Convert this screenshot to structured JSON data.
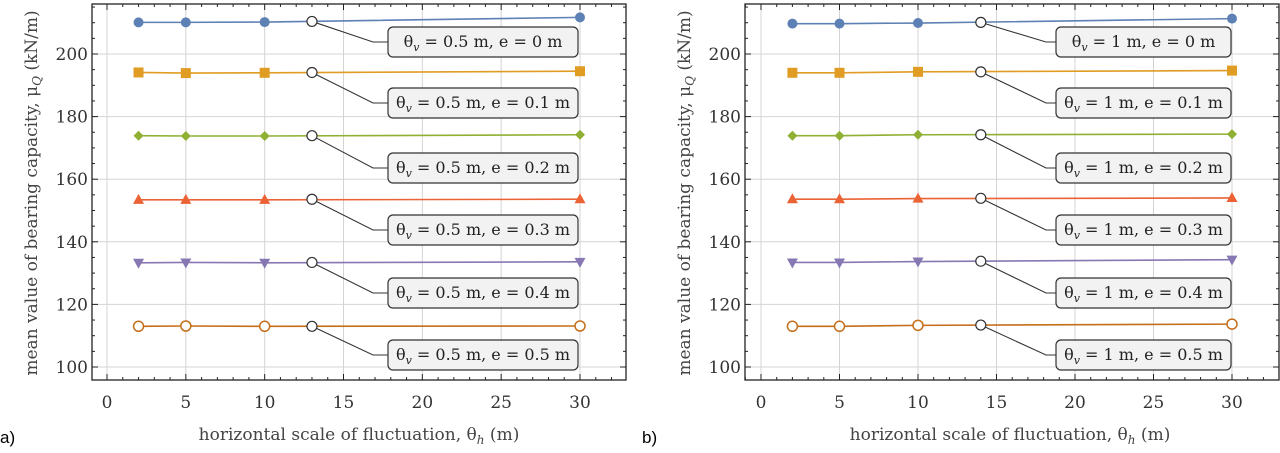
{
  "chart_data": [
    {
      "type": "line",
      "panel_label": "a)",
      "xlabel": {
        "pre": "horizontal scale of fluctuation, θ",
        "sub": "h",
        "post": " (m)"
      },
      "ylabel": {
        "pre": "mean value of bearing capacity, μ",
        "sub": "Q",
        "post": " (kN/m)"
      },
      "xlim": [
        -2,
        33.5
      ],
      "ylim": [
        96,
        216
      ],
      "xticks": [
        0,
        5,
        10,
        15,
        20,
        25,
        30
      ],
      "yticks": [
        100,
        120,
        140,
        160,
        180,
        200
      ],
      "grid": true,
      "x": [
        2,
        5,
        10,
        30
      ],
      "label_anchor_x": 13,
      "series": [
        {
          "label": {
            "pre": "θ",
            "sub": "v",
            "post": " = 0.5 m, e = 0 m"
          },
          "marker": "circle",
          "color": "#5e81b5",
          "values": [
            210.1,
            210.1,
            210.2,
            211.7
          ],
          "anchor_value": 210.4
        },
        {
          "label": {
            "pre": "θ",
            "sub": "v",
            "post": " = 0.5 m, e = 0.1 m"
          },
          "marker": "square",
          "color": "#e19c24",
          "values": [
            194.1,
            193.9,
            194.0,
            194.5
          ],
          "anchor_value": 194.1
        },
        {
          "label": {
            "pre": "θ",
            "sub": "v",
            "post": " = 0.5 m, e = 0.2 m"
          },
          "marker": "diamond",
          "color": "#8fb032",
          "values": [
            173.9,
            173.8,
            173.8,
            174.2
          ],
          "anchor_value": 173.9
        },
        {
          "label": {
            "pre": "θ",
            "sub": "v",
            "post": " = 0.5 m, e = 0.3 m"
          },
          "marker": "triangle-up",
          "color": "#eb6235",
          "values": [
            153.4,
            153.4,
            153.4,
            153.6
          ],
          "anchor_value": 153.6
        },
        {
          "label": {
            "pre": "θ",
            "sub": "v",
            "post": " = 0.5 m, e = 0.4 m"
          },
          "marker": "triangle-down",
          "color": "#8778b3",
          "values": [
            133.3,
            133.4,
            133.3,
            133.6
          ],
          "anchor_value": 133.4
        },
        {
          "label": {
            "pre": "θ",
            "sub": "v",
            "post": " = 0.5 m, e = 0.5 m"
          },
          "marker": "open-circle",
          "color": "#c56e1a",
          "values": [
            113.0,
            113.1,
            113.0,
            113.1
          ],
          "anchor_value": 113.0
        }
      ]
    },
    {
      "type": "line",
      "panel_label": "b)",
      "xlabel": {
        "pre": "horizontal scale of fluctuation, θ",
        "sub": "h",
        "post": " (m)"
      },
      "ylabel": {
        "pre": "mean value of bearing capacity, μ",
        "sub": "Q",
        "post": " (kN/m)"
      },
      "xlim": [
        -2,
        32
      ],
      "ylim": [
        96,
        216
      ],
      "xticks": [
        0,
        5,
        10,
        15,
        20,
        25,
        30
      ],
      "yticks": [
        100,
        120,
        140,
        160,
        180,
        200
      ],
      "grid": true,
      "x": [
        2,
        5,
        10,
        30
      ],
      "label_anchor_x": 14,
      "series": [
        {
          "label": {
            "pre": "θ",
            "sub": "v",
            "post": " = 1 m, e = 0 m"
          },
          "marker": "circle",
          "color": "#5e81b5",
          "values": [
            209.7,
            209.7,
            209.9,
            211.3
          ],
          "anchor_value": 210.1
        },
        {
          "label": {
            "pre": "θ",
            "sub": "v",
            "post": " = 1 m, e = 0.1 m"
          },
          "marker": "square",
          "color": "#e19c24",
          "values": [
            194.0,
            194.0,
            194.3,
            194.7
          ],
          "anchor_value": 194.3
        },
        {
          "label": {
            "pre": "θ",
            "sub": "v",
            "post": " = 1 m, e = 0.2 m"
          },
          "marker": "diamond",
          "color": "#8fb032",
          "values": [
            173.9,
            173.9,
            174.2,
            174.4
          ],
          "anchor_value": 174.2
        },
        {
          "label": {
            "pre": "θ",
            "sub": "v",
            "post": " = 1 m, e = 0.3 m"
          },
          "marker": "triangle-up",
          "color": "#eb6235",
          "values": [
            153.6,
            153.6,
            153.8,
            154.0
          ],
          "anchor_value": 153.9
        },
        {
          "label": {
            "pre": "θ",
            "sub": "v",
            "post": " = 1 m, e = 0.4 m"
          },
          "marker": "triangle-down",
          "color": "#8778b3",
          "values": [
            133.4,
            133.4,
            133.7,
            134.3
          ],
          "anchor_value": 133.8
        },
        {
          "label": {
            "pre": "θ",
            "sub": "v",
            "post": " = 1 m, e = 0.5 m"
          },
          "marker": "open-circle",
          "color": "#c56e1a",
          "values": [
            113.0,
            113.0,
            113.3,
            113.7
          ],
          "anchor_value": 113.4
        }
      ]
    }
  ]
}
